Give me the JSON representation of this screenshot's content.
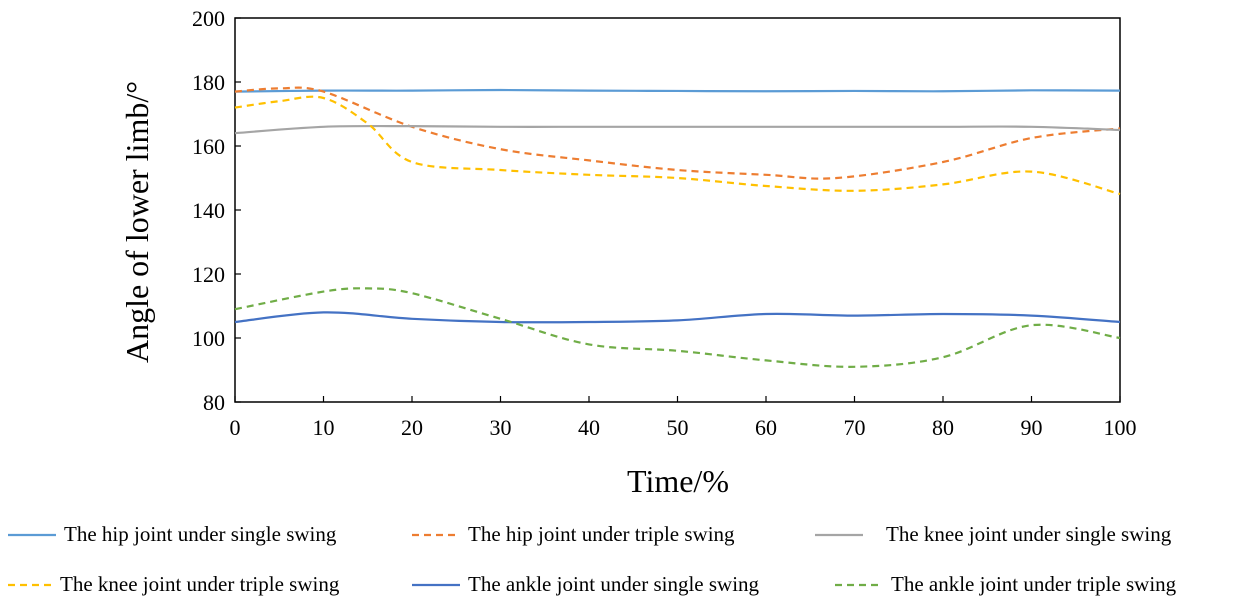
{
  "chart_data": {
    "type": "line",
    "title": "",
    "xlabel": "Time/%",
    "ylabel": "Angle of lower limb/°",
    "xlim": [
      0,
      100
    ],
    "ylim": [
      80,
      200
    ],
    "xticks": [
      0,
      10,
      20,
      30,
      40,
      50,
      60,
      70,
      80,
      90,
      100
    ],
    "yticks": [
      80,
      100,
      120,
      140,
      160,
      180,
      200
    ],
    "grid": false,
    "legend_position": "bottom",
    "series": [
      {
        "name": "The hip joint under single swing",
        "color": "#5B9BD5",
        "dash": "solid",
        "x": [
          0,
          10,
          20,
          30,
          40,
          50,
          60,
          70,
          80,
          90,
          100
        ],
        "y": [
          177,
          177.3,
          177.3,
          177.5,
          177.3,
          177.2,
          177.1,
          177.2,
          177.1,
          177.4,
          177.3
        ]
      },
      {
        "name": "The hip joint under triple swing",
        "color": "#ED7D31",
        "dash": "dashed",
        "x": [
          0,
          5,
          10,
          20,
          30,
          40,
          50,
          60,
          68,
          80,
          90,
          100
        ],
        "y": [
          177,
          178,
          177,
          166,
          159,
          155.5,
          152.5,
          151,
          150,
          155,
          162.5,
          165.5
        ]
      },
      {
        "name": "The knee joint under single swing",
        "color": "#A5A5A5",
        "dash": "solid",
        "x": [
          0,
          10,
          20,
          30,
          40,
          50,
          60,
          70,
          80,
          90,
          100
        ],
        "y": [
          164,
          166,
          166.2,
          166,
          166,
          166,
          166,
          166,
          166,
          166,
          165
        ]
      },
      {
        "name": "The knee joint under triple swing",
        "color": "#FFC000",
        "dash": "dashed",
        "x": [
          0,
          5,
          10,
          15,
          20,
          30,
          40,
          50,
          60,
          70,
          80,
          90,
          100
        ],
        "y": [
          172,
          174,
          175,
          167,
          155,
          152.5,
          151,
          150,
          147.5,
          146,
          148,
          152,
          145
        ]
      },
      {
        "name": "The ankle joint under single swing",
        "color": "#4472C4",
        "dash": "solid",
        "x": [
          0,
          10,
          20,
          30,
          40,
          50,
          60,
          70,
          80,
          90,
          100
        ],
        "y": [
          105,
          108,
          106,
          105,
          105,
          105.5,
          107.5,
          107,
          107.5,
          107,
          105
        ]
      },
      {
        "name": "The ankle joint under triple swing",
        "color": "#70AD47",
        "dash": "dashed",
        "x": [
          0,
          10,
          15,
          20,
          30,
          40,
          50,
          60,
          70,
          80,
          90,
          100
        ],
        "y": [
          109,
          114.5,
          115.5,
          114,
          106,
          98,
          96,
          93,
          91,
          94,
          104,
          100
        ]
      }
    ]
  }
}
